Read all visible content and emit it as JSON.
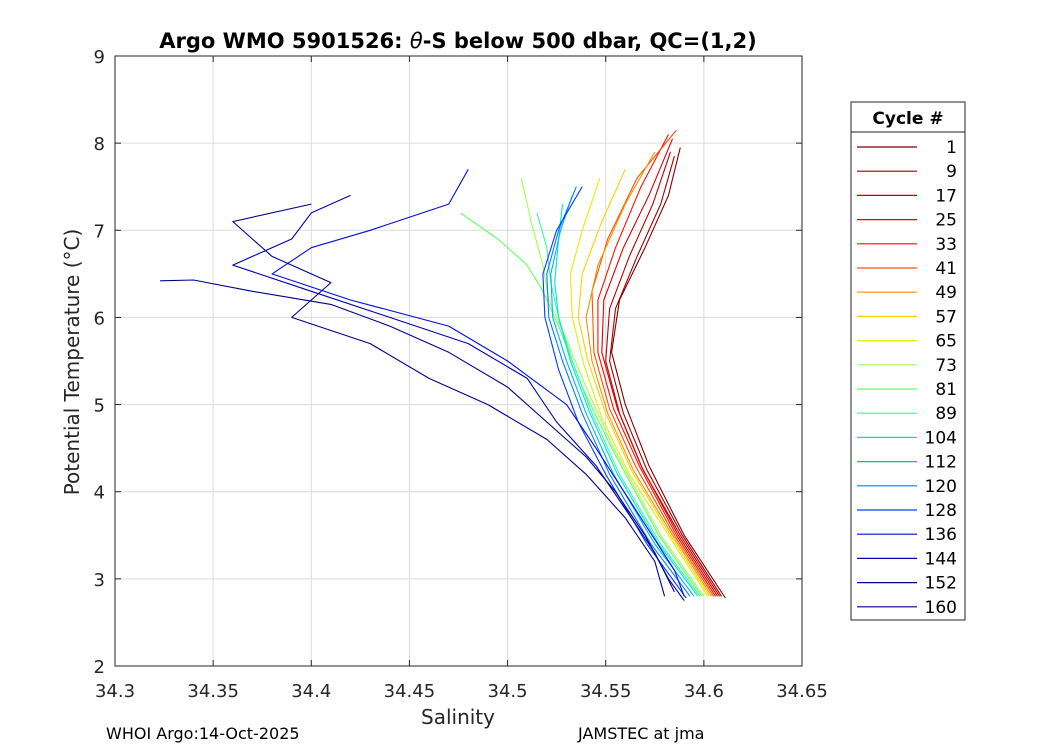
{
  "chart_data": {
    "type": "line",
    "title": {
      "prefix": "Argo WMO 5901526: ",
      "theta": "θ",
      "suffix": "-S below 500 dbar,  QC=(1,2)"
    },
    "xlabel": "Salinity",
    "ylabel": "Potential Temperature (°C)",
    "xlim": [
      34.3,
      34.65
    ],
    "ylim": [
      2,
      9
    ],
    "xticks": [
      34.3,
      34.35,
      34.4,
      34.45,
      34.5,
      34.55,
      34.6,
      34.65
    ],
    "xtick_labels": [
      "34.3",
      "34.35",
      "34.4",
      "34.45",
      "34.5",
      "34.55",
      "34.6",
      "34.65"
    ],
    "yticks": [
      2,
      3,
      4,
      5,
      6,
      7,
      8,
      9
    ],
    "ytick_labels": [
      "2",
      "3",
      "4",
      "5",
      "6",
      "7",
      "8",
      "9"
    ],
    "grid": true,
    "legend": {
      "title": "Cycle #",
      "placement": "outside-right",
      "entries": [
        {
          "label": "1",
          "color": "#800000"
        },
        {
          "label": "9",
          "color": "#a00000"
        },
        {
          "label": "17",
          "color": "#c00000"
        },
        {
          "label": "25",
          "color": "#e00000"
        },
        {
          "label": "33",
          "color": "#ff1000"
        },
        {
          "label": "41",
          "color": "#ff5000"
        },
        {
          "label": "49",
          "color": "#ff9000"
        },
        {
          "label": "57",
          "color": "#ffd000"
        },
        {
          "label": "65",
          "color": "#e0f000"
        },
        {
          "label": "73",
          "color": "#a0ff50"
        },
        {
          "label": "81",
          "color": "#60ff60"
        },
        {
          "label": "89",
          "color": "#30ffa0"
        },
        {
          "label": "104",
          "color": "#00e0e0"
        },
        {
          "label": "112",
          "color": "#00b0ff"
        },
        {
          "label": "120",
          "color": "#0080ff"
        },
        {
          "label": "128",
          "color": "#0040ff"
        },
        {
          "label": "136",
          "color": "#0010e0"
        },
        {
          "label": "144",
          "color": "#0000b0"
        },
        {
          "label": "152",
          "color": "#000090"
        },
        {
          "label": "160",
          "color": "#00008f"
        }
      ]
    },
    "series": [
      {
        "name": "1",
        "color": "#800000",
        "points": [
          [
            34.588,
            7.95
          ],
          [
            34.582,
            7.4
          ],
          [
            34.57,
            6.8
          ],
          [
            34.557,
            6.2
          ],
          [
            34.553,
            5.6
          ],
          [
            34.56,
            5.0
          ],
          [
            34.572,
            4.3
          ],
          [
            34.59,
            3.5
          ],
          [
            34.611,
            2.78
          ]
        ]
      },
      {
        "name": "9",
        "color": "#a00000",
        "points": [
          [
            34.585,
            7.85
          ],
          [
            34.578,
            7.3
          ],
          [
            34.566,
            6.7
          ],
          [
            34.555,
            6.1
          ],
          [
            34.552,
            5.5
          ],
          [
            34.559,
            4.9
          ],
          [
            34.571,
            4.25
          ],
          [
            34.589,
            3.5
          ],
          [
            34.609,
            2.8
          ]
        ]
      },
      {
        "name": "17",
        "color": "#c00000",
        "points": [
          [
            34.583,
            7.9
          ],
          [
            34.574,
            7.3
          ],
          [
            34.562,
            6.7
          ],
          [
            34.552,
            6.1
          ],
          [
            34.55,
            5.5
          ],
          [
            34.557,
            4.9
          ],
          [
            34.569,
            4.25
          ],
          [
            34.588,
            3.5
          ],
          [
            34.608,
            2.8
          ]
        ]
      },
      {
        "name": "25",
        "color": "#e00000",
        "points": [
          [
            34.584,
            8.05
          ],
          [
            34.572,
            7.4
          ],
          [
            34.559,
            6.8
          ],
          [
            34.549,
            6.2
          ],
          [
            34.548,
            5.6
          ],
          [
            34.556,
            4.95
          ],
          [
            34.568,
            4.3
          ],
          [
            34.587,
            3.5
          ],
          [
            34.607,
            2.8
          ]
        ]
      },
      {
        "name": "33",
        "color": "#ff1000",
        "points": [
          [
            34.582,
            8.1
          ],
          [
            34.568,
            7.5
          ],
          [
            34.555,
            6.8
          ],
          [
            34.546,
            6.2
          ],
          [
            34.546,
            5.6
          ],
          [
            34.554,
            4.95
          ],
          [
            34.567,
            4.3
          ],
          [
            34.586,
            3.5
          ],
          [
            34.606,
            2.8
          ]
        ]
      },
      {
        "name": "41",
        "color": "#ff5000",
        "points": [
          [
            34.586,
            8.15
          ],
          [
            34.566,
            7.6
          ],
          [
            34.551,
            6.9
          ],
          [
            34.543,
            6.3
          ],
          [
            34.544,
            5.6
          ],
          [
            34.552,
            4.95
          ],
          [
            34.565,
            4.3
          ],
          [
            34.585,
            3.5
          ],
          [
            34.605,
            2.8
          ]
        ]
      },
      {
        "name": "49",
        "color": "#ff9000",
        "points": [
          [
            34.575,
            7.9
          ],
          [
            34.56,
            7.3
          ],
          [
            34.546,
            6.6
          ],
          [
            34.54,
            6.0
          ],
          [
            34.543,
            5.5
          ],
          [
            34.551,
            4.9
          ],
          [
            34.564,
            4.25
          ],
          [
            34.584,
            3.5
          ],
          [
            34.604,
            2.8
          ]
        ]
      },
      {
        "name": "57",
        "color": "#ffd000",
        "points": [
          [
            34.56,
            7.7
          ],
          [
            34.548,
            7.1
          ],
          [
            34.538,
            6.5
          ],
          [
            34.536,
            6.0
          ],
          [
            34.541,
            5.5
          ],
          [
            34.55,
            4.9
          ],
          [
            34.563,
            4.25
          ],
          [
            34.583,
            3.5
          ],
          [
            34.603,
            2.8
          ]
        ]
      },
      {
        "name": "65",
        "color": "#e0f000",
        "points": [
          [
            34.547,
            7.6
          ],
          [
            34.538,
            7.0
          ],
          [
            34.532,
            6.5
          ],
          [
            34.533,
            6.0
          ],
          [
            34.539,
            5.45
          ],
          [
            34.548,
            4.85
          ],
          [
            34.562,
            4.2
          ],
          [
            34.582,
            3.5
          ],
          [
            34.602,
            2.8
          ]
        ]
      },
      {
        "name": "73",
        "color": "#a0ff50",
        "points": [
          [
            34.507,
            7.6
          ],
          [
            34.512,
            7.1
          ],
          [
            34.518,
            6.6
          ],
          [
            34.521,
            6.2
          ],
          [
            34.529,
            5.8
          ],
          [
            34.54,
            5.2
          ],
          [
            34.554,
            4.5
          ],
          [
            34.578,
            3.5
          ],
          [
            34.6,
            2.8
          ]
        ]
      },
      {
        "name": "81",
        "color": "#60ff60",
        "points": [
          [
            34.476,
            7.2
          ],
          [
            34.495,
            6.9
          ],
          [
            34.51,
            6.6
          ],
          [
            34.518,
            6.3
          ],
          [
            34.526,
            5.9
          ],
          [
            34.538,
            5.2
          ],
          [
            34.553,
            4.5
          ],
          [
            34.577,
            3.5
          ],
          [
            34.599,
            2.8
          ]
        ]
      },
      {
        "name": "89",
        "color": "#30ffa0",
        "points": [
          [
            34.515,
            7.2
          ],
          [
            34.52,
            6.8
          ],
          [
            34.522,
            6.4
          ],
          [
            34.526,
            6.0
          ],
          [
            34.533,
            5.5
          ],
          [
            34.543,
            4.9
          ],
          [
            34.557,
            4.2
          ],
          [
            34.578,
            3.4
          ],
          [
            34.598,
            2.8
          ]
        ]
      },
      {
        "name": "104",
        "color": "#00e0e0",
        "points": [
          [
            34.528,
            7.3
          ],
          [
            34.526,
            6.9
          ],
          [
            34.524,
            6.4
          ],
          [
            34.526,
            6.0
          ],
          [
            34.532,
            5.5
          ],
          [
            34.542,
            4.9
          ],
          [
            34.556,
            4.2
          ],
          [
            34.577,
            3.4
          ],
          [
            34.597,
            2.8
          ]
        ]
      },
      {
        "name": "112",
        "color": "#00b0ff",
        "points": [
          [
            34.533,
            7.4
          ],
          [
            34.527,
            7.0
          ],
          [
            34.522,
            6.5
          ],
          [
            34.523,
            6.0
          ],
          [
            34.53,
            5.5
          ],
          [
            34.54,
            4.9
          ],
          [
            34.554,
            4.2
          ],
          [
            34.575,
            3.4
          ],
          [
            34.595,
            2.8
          ]
        ]
      },
      {
        "name": "120",
        "color": "#0080ff",
        "points": [
          [
            34.535,
            7.5
          ],
          [
            34.526,
            7.0
          ],
          [
            34.52,
            6.5
          ],
          [
            34.521,
            6.0
          ],
          [
            34.528,
            5.5
          ],
          [
            34.538,
            4.9
          ],
          [
            34.552,
            4.2
          ],
          [
            34.573,
            3.4
          ],
          [
            34.593,
            2.8
          ]
        ]
      },
      {
        "name": "128",
        "color": "#0040ff",
        "points": [
          [
            34.538,
            7.5
          ],
          [
            34.525,
            7.0
          ],
          [
            34.518,
            6.5
          ],
          [
            34.519,
            6.0
          ],
          [
            34.526,
            5.4
          ],
          [
            34.536,
            4.8
          ],
          [
            34.55,
            4.2
          ],
          [
            34.571,
            3.4
          ],
          [
            34.591,
            2.78
          ]
        ]
      },
      {
        "name": "136",
        "color": "#0010e0",
        "points": [
          [
            34.48,
            7.7
          ],
          [
            34.47,
            7.3
          ],
          [
            34.43,
            7.0
          ],
          [
            34.4,
            6.8
          ],
          [
            34.38,
            6.5
          ],
          [
            34.42,
            6.2
          ],
          [
            34.47,
            5.9
          ],
          [
            34.5,
            5.5
          ],
          [
            34.53,
            5.0
          ],
          [
            34.545,
            4.5
          ],
          [
            34.565,
            3.8
          ],
          [
            34.585,
            3.1
          ],
          [
            34.59,
            2.8
          ]
        ]
      },
      {
        "name": "144",
        "color": "#0000b0",
        "points": [
          [
            34.42,
            7.4
          ],
          [
            34.4,
            7.2
          ],
          [
            34.39,
            6.9
          ],
          [
            34.36,
            6.6
          ],
          [
            34.4,
            6.3
          ],
          [
            34.44,
            6.0
          ],
          [
            34.48,
            5.7
          ],
          [
            34.51,
            5.3
          ],
          [
            34.525,
            4.8
          ],
          [
            34.545,
            4.3
          ],
          [
            34.56,
            3.8
          ],
          [
            34.575,
            3.3
          ],
          [
            34.585,
            2.85
          ]
        ]
      },
      {
        "name": "152",
        "color": "#000090",
        "points": [
          [
            34.4,
            7.3
          ],
          [
            34.36,
            7.1
          ],
          [
            34.38,
            6.7
          ],
          [
            34.41,
            6.4
          ],
          [
            34.39,
            6.0
          ],
          [
            34.43,
            5.7
          ],
          [
            34.46,
            5.3
          ],
          [
            34.49,
            5.0
          ],
          [
            34.52,
            4.6
          ],
          [
            34.54,
            4.2
          ],
          [
            34.56,
            3.7
          ],
          [
            34.575,
            3.2
          ],
          [
            34.58,
            2.8
          ]
        ]
      },
      {
        "name": "160",
        "color": "#00008f",
        "points": [
          [
            34.323,
            6.42
          ],
          [
            34.34,
            6.43
          ],
          [
            34.37,
            6.3
          ],
          [
            34.41,
            6.15
          ],
          [
            34.44,
            5.9
          ],
          [
            34.47,
            5.6
          ],
          [
            34.5,
            5.2
          ],
          [
            34.52,
            4.8
          ],
          [
            34.54,
            4.4
          ],
          [
            34.555,
            4.0
          ],
          [
            34.57,
            3.5
          ],
          [
            34.582,
            3.0
          ],
          [
            34.59,
            2.75
          ]
        ]
      }
    ]
  },
  "footer": {
    "left": "WHOI Argo:14-Oct-2025",
    "right": "JAMSTEC at jma"
  }
}
